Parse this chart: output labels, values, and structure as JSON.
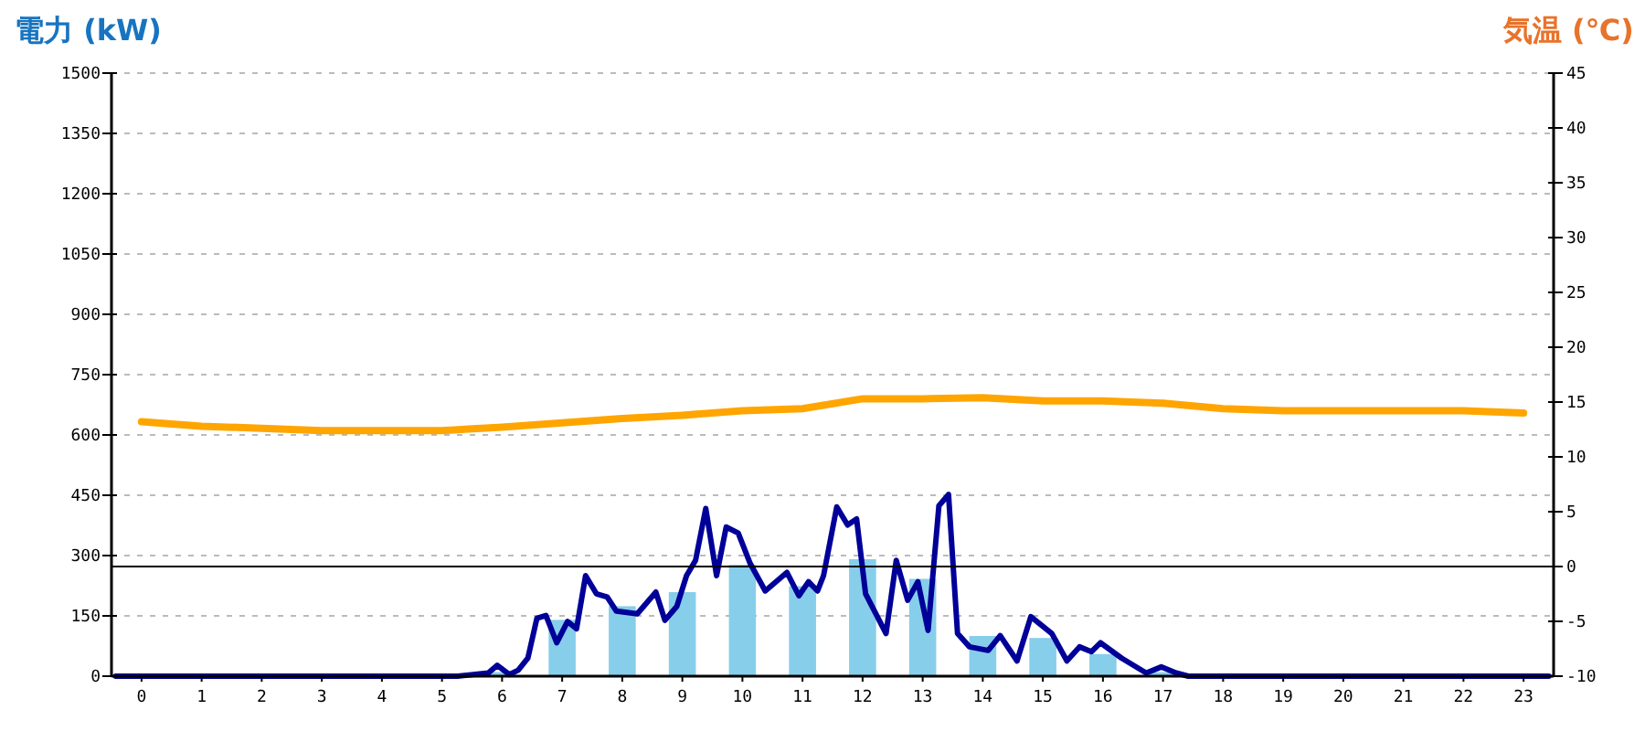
{
  "chart_data": {
    "type": "bar",
    "ylabel": "電力 (kW)",
    "y2label": "気温 (℃)",
    "x": [
      0,
      1,
      2,
      3,
      4,
      5,
      6,
      7,
      8,
      9,
      10,
      11,
      12,
      13,
      14,
      15,
      16,
      17,
      18,
      19,
      20,
      21,
      22,
      23
    ],
    "xlim": [
      -0.5,
      23.5
    ],
    "xticks": [
      0,
      1,
      2,
      3,
      4,
      5,
      6,
      7,
      8,
      9,
      10,
      11,
      12,
      13,
      14,
      15,
      16,
      17,
      18,
      19,
      20,
      21,
      22,
      23
    ],
    "ylim": [
      0,
      1500
    ],
    "yticks": [
      0,
      150,
      300,
      450,
      600,
      750,
      900,
      1050,
      1200,
      1350,
      1500
    ],
    "y2lim": [
      -10,
      45
    ],
    "y2ticks": [
      -10,
      -5,
      0,
      5,
      10,
      15,
      20,
      25,
      30,
      35,
      40,
      45
    ],
    "grid": "y",
    "ref_lines": [
      {
        "axis": "y2",
        "value": 0,
        "color": "#000000"
      }
    ],
    "series": [
      {
        "color": "#87ceeb",
        "values": [
          0,
          0,
          0,
          0,
          0,
          0,
          10,
          140,
          174,
          209,
          277,
          224,
          291,
          242,
          100,
          95,
          55,
          10,
          0,
          0,
          0,
          0,
          0,
          0
        ]
      },
      {
        "type": "line",
        "color": "#000099",
        "x": [
          -0.43,
          5.26,
          5.77,
          5.92,
          6.12,
          6.27,
          6.43,
          6.58,
          6.73,
          6.91,
          7.09,
          7.24,
          7.39,
          7.57,
          7.75,
          7.9,
          8.25,
          8.56,
          8.71,
          8.91,
          9.07,
          9.22,
          9.39,
          9.57,
          9.73,
          9.93,
          10.13,
          10.38,
          10.74,
          10.94,
          11.1,
          11.25,
          11.35,
          11.57,
          11.75,
          11.9,
          12.05,
          12.39,
          12.56,
          12.75,
          12.92,
          13.09,
          13.27,
          13.43,
          13.58,
          13.78,
          14.09,
          14.29,
          14.57,
          14.8,
          15.15,
          15.4,
          15.61,
          15.81,
          15.96,
          16.31,
          16.72,
          16.97,
          17.22,
          17.42,
          23.42
        ],
        "values": [
          0,
          0,
          8,
          27,
          4,
          15,
          45,
          144,
          151,
          83,
          136,
          118,
          250,
          205,
          197,
          162,
          155,
          209,
          139,
          174,
          250,
          288,
          417,
          250,
          371,
          356,
          280,
          212,
          258,
          200,
          235,
          212,
          250,
          421,
          376,
          391,
          205,
          106,
          288,
          189,
          235,
          114,
          424,
          452,
          106,
          73,
          64,
          101,
          38,
          148,
          106,
          38,
          73,
          61,
          83,
          45,
          8,
          23,
          8,
          0,
          0
        ]
      },
      {
        "type": "line",
        "axis": "y2",
        "color": "#ffa500",
        "values": [
          13.2,
          12.8,
          12.6,
          12.4,
          12.4,
          12.4,
          12.7,
          13.1,
          13.5,
          13.8,
          14.2,
          14.4,
          15.3,
          15.3,
          15.4,
          15.1,
          15.1,
          14.9,
          14.4,
          14.2,
          14.2,
          14.2,
          14.2,
          14.0
        ]
      }
    ]
  }
}
